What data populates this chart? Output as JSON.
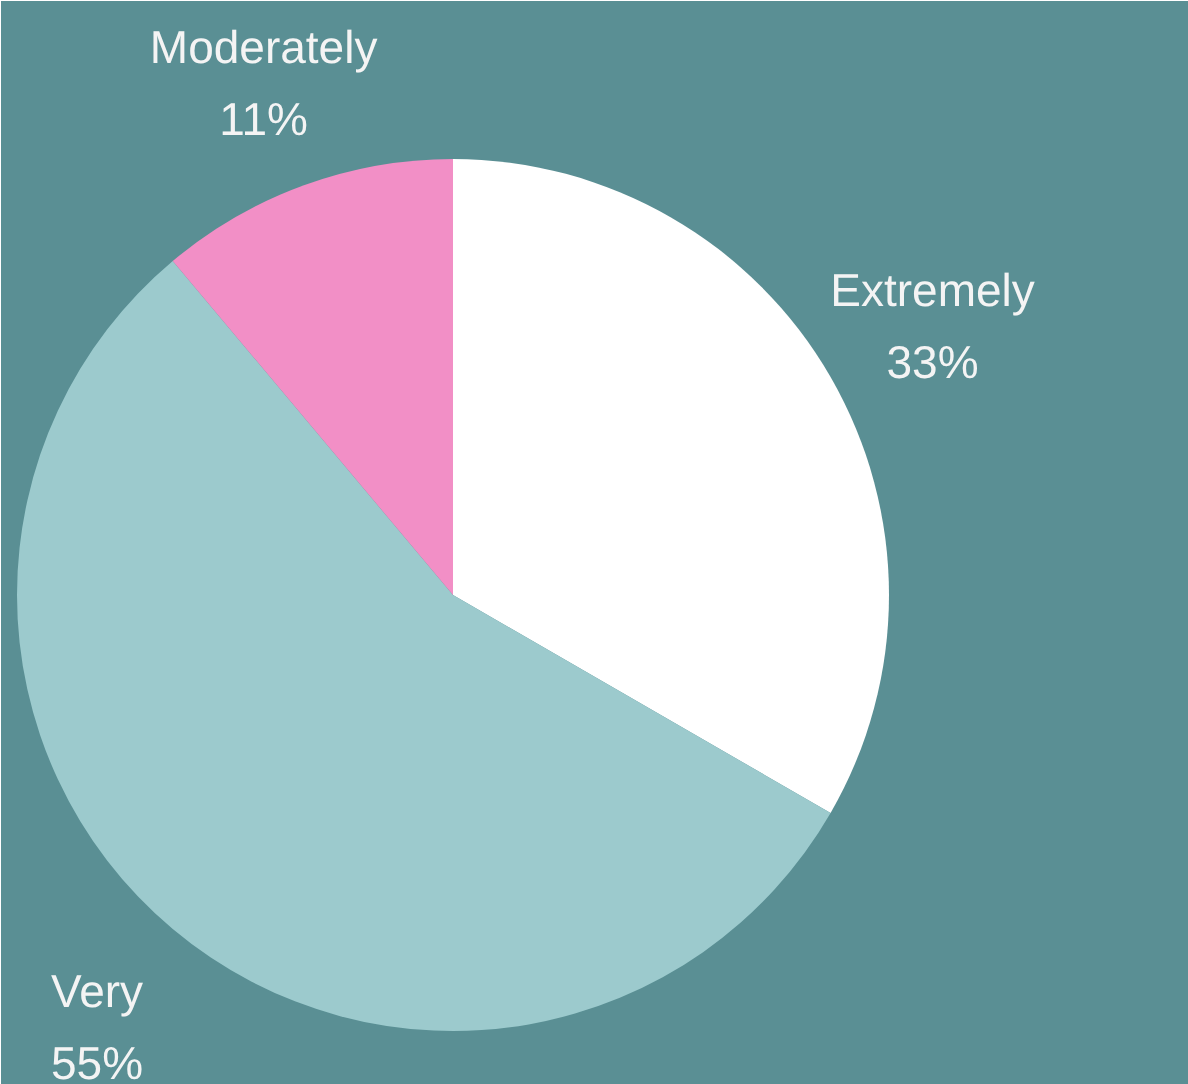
{
  "chart_data": {
    "type": "pie",
    "categories": [
      "Extremely",
      "Very",
      "Moderately"
    ],
    "values": [
      33,
      55,
      11
    ],
    "colors": [
      "#ffffff",
      "#9ccacd",
      "#f28fc6"
    ],
    "value_labels": [
      "33%",
      "55%",
      "11%"
    ]
  }
}
